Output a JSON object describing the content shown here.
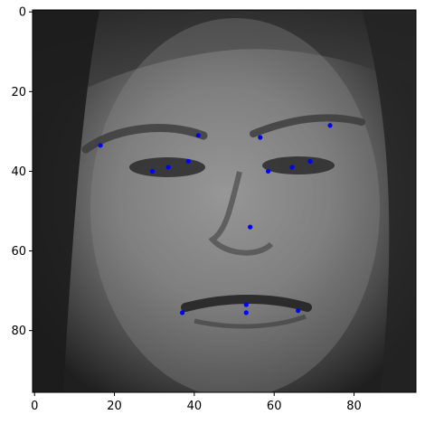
{
  "chart_data": {
    "type": "scatter",
    "title": "",
    "xlabel": "",
    "ylabel": "",
    "xlim": [
      -0.5,
      95.5
    ],
    "ylim": [
      95.5,
      -0.5
    ],
    "grid": false,
    "x_ticks": [
      0,
      20,
      40,
      60,
      80
    ],
    "y_ticks": [
      0,
      20,
      40,
      60,
      80
    ],
    "image": {
      "description_role": "grayscale face photo background (imshow, 96x96)",
      "colormap": "gray"
    },
    "series": [
      {
        "color": "#0000ff",
        "marker": "circle",
        "points": [
          {
            "x": 16.5,
            "y": 33.5
          },
          {
            "x": 29.5,
            "y": 40.0
          },
          {
            "x": 33.5,
            "y": 39.0
          },
          {
            "x": 38.5,
            "y": 37.5
          },
          {
            "x": 41.0,
            "y": 31.0
          },
          {
            "x": 56.5,
            "y": 31.5
          },
          {
            "x": 58.5,
            "y": 40.0
          },
          {
            "x": 64.5,
            "y": 39.0
          },
          {
            "x": 69.0,
            "y": 37.5
          },
          {
            "x": 74.0,
            "y": 28.5
          },
          {
            "x": 54.0,
            "y": 54.0
          },
          {
            "x": 37.0,
            "y": 75.5
          },
          {
            "x": 53.0,
            "y": 73.5
          },
          {
            "x": 53.0,
            "y": 75.5
          },
          {
            "x": 66.0,
            "y": 75.0
          }
        ]
      }
    ]
  }
}
